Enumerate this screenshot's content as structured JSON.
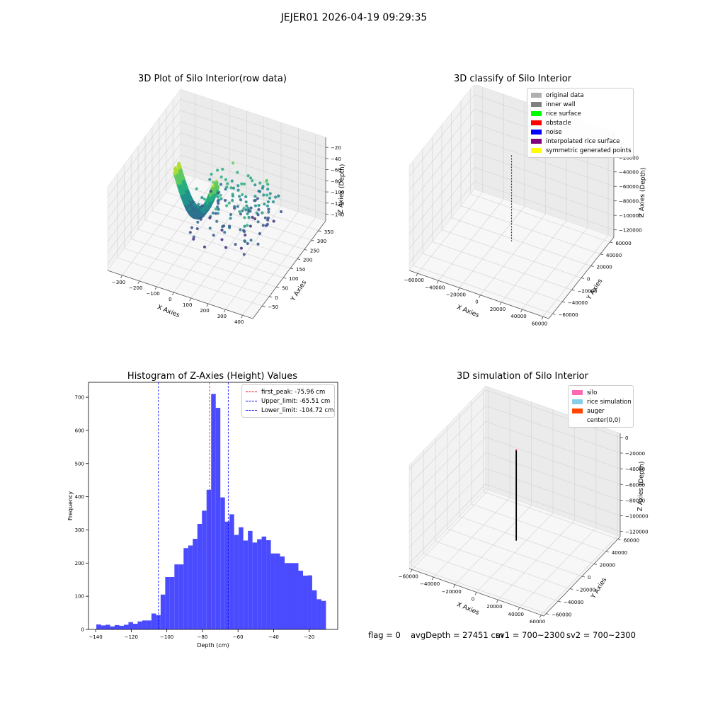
{
  "suptitle": "JEJER01 2026-04-19 09:29:35",
  "chart_data": [
    {
      "type": "scatter",
      "projection": "3d",
      "title": "3D Plot of Silo Interior(row data)",
      "xlabel": "X Axies",
      "ylabel": "Y Axies",
      "zlabel": "Z Axies (Depth)",
      "x_ticks": [
        "−300",
        "−200",
        "−100",
        "0",
        "100",
        "200",
        "300",
        "400"
      ],
      "y_ticks": [
        "−50",
        "0",
        "50",
        "100",
        "150",
        "200",
        "250",
        "300",
        "350"
      ],
      "z_ticks": [
        "−20",
        "−40",
        "−60",
        "−80",
        "−100",
        "−120",
        "−140"
      ],
      "colormap": "viridis"
    },
    {
      "type": "scatter",
      "projection": "3d",
      "title": "3D classify of Silo Interior",
      "xlabel": "X Axies",
      "ylabel": "Y Axies",
      "zlabel": "Z Axies (Depth)",
      "x_ticks": [
        "−60000",
        "−40000",
        "−20000",
        "0",
        "20000",
        "40000",
        "60000"
      ],
      "y_ticks": [
        "−60000",
        "−40000",
        "−20000",
        "0",
        "20000",
        "40000",
        "60000"
      ],
      "z_ticks": [
        "0",
        "−20000",
        "−40000",
        "−60000",
        "−80000",
        "−100000",
        "−120000"
      ],
      "legend": [
        {
          "label": "original data",
          "color": "#b0b0b0"
        },
        {
          "label": "inner wall",
          "color": "#808080"
        },
        {
          "label": "rice surface",
          "color": "#00ff00"
        },
        {
          "label": "obstacle",
          "color": "#ff0000"
        },
        {
          "label": "noise",
          "color": "#0000ff"
        },
        {
          "label": "interpolated rice surface",
          "color": "#800080"
        },
        {
          "label": "symmetric generated points",
          "color": "#ffff00"
        }
      ]
    },
    {
      "type": "bar",
      "title": "Histogram of Z-Axies (Height) Values",
      "xlabel": "Depth (cm)",
      "ylabel": "Frequency",
      "xlim": [
        -144,
        -4
      ],
      "ylim": [
        0,
        745
      ],
      "x_ticks": [
        -140,
        -120,
        -100,
        -80,
        -60,
        -40,
        -20
      ],
      "y_ticks": [
        0,
        100,
        200,
        300,
        400,
        500,
        600,
        700
      ],
      "bin_start": -139.6,
      "bin_width": 2.58,
      "values": [
        15,
        12,
        14,
        9,
        13,
        11,
        14,
        22,
        17,
        24,
        27,
        27,
        48,
        43,
        105,
        158,
        158,
        196,
        196,
        245,
        253,
        273,
        318,
        358,
        421,
        710,
        668,
        398,
        325,
        347,
        285,
        308,
        268,
        297,
        262,
        272,
        280,
        269,
        229,
        229,
        220,
        200,
        200,
        200,
        177,
        162,
        163,
        118,
        91,
        86
      ],
      "bar_color": "#4a4aff",
      "vlines": [
        {
          "label": "first_peak: -75.96 cm",
          "x": -75.96,
          "color": "#ff0000"
        },
        {
          "label": "Upper_limit: -65.51 cm",
          "x": -65.51,
          "color": "#0000ff"
        },
        {
          "label": "Lower_limit: -104.72 cm",
          "x": -104.72,
          "color": "#0000ff"
        }
      ]
    },
    {
      "type": "line",
      "projection": "3d",
      "title": "3D simulation of Silo Interior",
      "xlabel": "X Axies",
      "ylabel": "Y Axies",
      "zlabel": "Z Axies (Depth)",
      "x_ticks": [
        "−60000",
        "−40000",
        "−20000",
        "0",
        "20000",
        "40000",
        "60000"
      ],
      "y_ticks": [
        "−60000",
        "−40000",
        "−20000",
        "0",
        "20000",
        "40000",
        "60000"
      ],
      "z_ticks": [
        "0",
        "−20000",
        "−40000",
        "−60000",
        "−80000",
        "−100000",
        "−120000"
      ],
      "legend": [
        {
          "label": "silo",
          "color": "#ff69b4"
        },
        {
          "label": "rice simulation",
          "color": "#87ceeb"
        },
        {
          "label": "auger",
          "color": "#ff4500"
        },
        {
          "label": "center(0,0)",
          "color": "#ffffff"
        }
      ]
    }
  ],
  "status": {
    "flag": "flag = 0",
    "avg_depth": "avgDepth = 27451 cm",
    "sv1": "sv1 = 700~2300",
    "sv2": "sv2 = 700~2300"
  }
}
